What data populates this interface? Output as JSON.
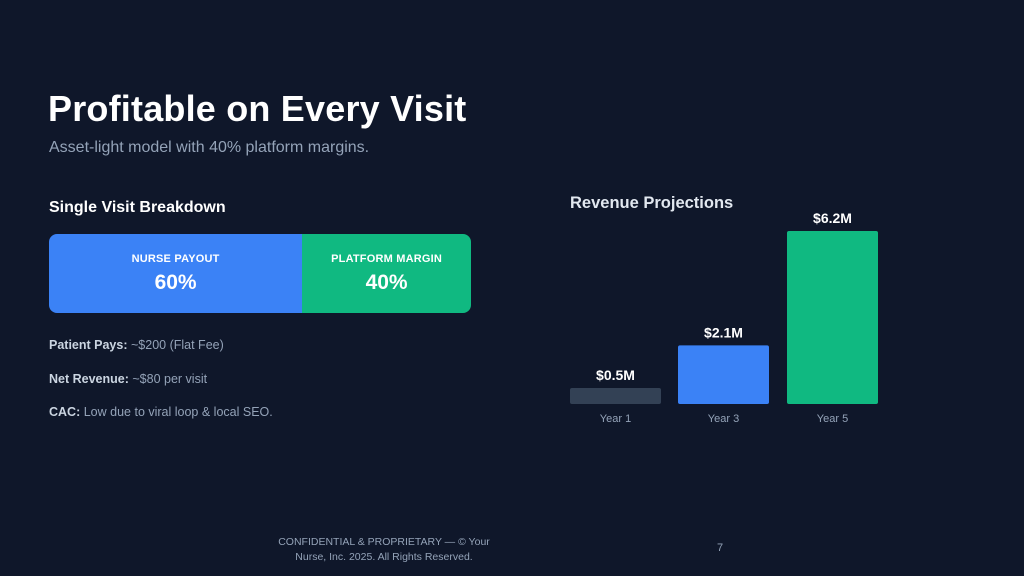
{
  "slide": {
    "title": "Profitable on Every Visit",
    "subtitle": "Asset-light model with 40% platform margins."
  },
  "breakdown": {
    "heading": "Single Visit Breakdown",
    "segments": [
      {
        "label": "NURSE PAYOUT",
        "value": "60%",
        "share": 0.6,
        "color": "#3b82f6"
      },
      {
        "label": "PLATFORM MARGIN",
        "value": "40%",
        "share": 0.4,
        "color": "#10b981"
      }
    ],
    "facts": [
      {
        "label": "Patient Pays:",
        "text": "~$200 (Flat Fee)"
      },
      {
        "label": "Net Revenue:",
        "text": "~$80 per visit"
      },
      {
        "label": "CAC:",
        "text": "Low due to viral loop & local SEO."
      }
    ]
  },
  "chart_data": {
    "type": "bar",
    "title": "Revenue Projections",
    "categories": [
      "Year 1",
      "Year 3",
      "Year 5"
    ],
    "values": [
      0.5,
      2.1,
      6.2
    ],
    "value_labels": [
      "$0.5M",
      "$2.1M",
      "$6.2M"
    ],
    "colors": [
      "#334155",
      "#3b82f6",
      "#10b981"
    ],
    "ylim": [
      0,
      6.2
    ],
    "grid": false,
    "legend": "none"
  },
  "footer": {
    "line1": "CONFIDENTIAL & PROPRIETARY — © Your",
    "line2": "Nurse, Inc. 2025. All Rights Reserved.",
    "page_number": "7"
  }
}
